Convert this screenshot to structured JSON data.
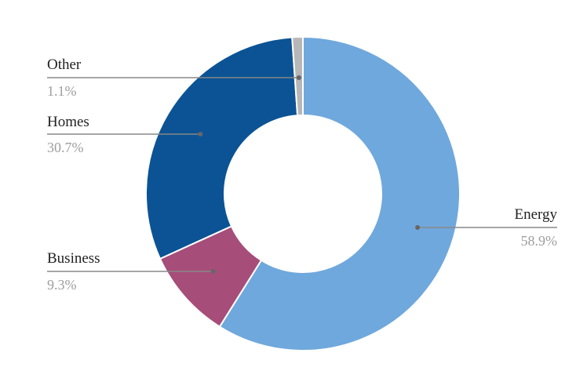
{
  "chart_data": {
    "type": "pie",
    "donut": true,
    "title": "",
    "slices": [
      {
        "name": "Energy",
        "value": 58.9,
        "label": "58.9%",
        "color": "#6fa8dc"
      },
      {
        "name": "Business",
        "value": 9.3,
        "label": "9.3%",
        "color": "#a64d79"
      },
      {
        "name": "Homes",
        "value": 30.7,
        "label": "30.7%",
        "color": "#0b5394"
      },
      {
        "name": "Other",
        "value": 1.1,
        "label": "1.1%",
        "color": "#b7b7b7"
      }
    ],
    "legend": "none",
    "label_style": "callout lines with name and percentage"
  }
}
